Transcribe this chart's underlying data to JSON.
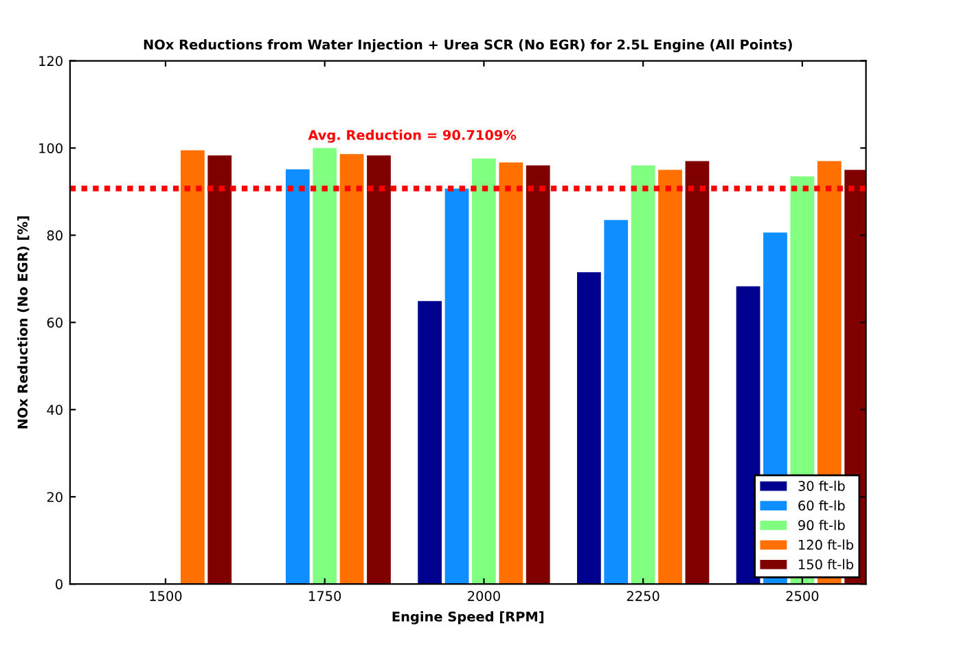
{
  "chart_data": {
    "type": "bar",
    "title": "NOx Reductions from Water Injection + Urea SCR (No EGR) for 2.5L Engine (All Points)",
    "xlabel": "Engine Speed [RPM]",
    "ylabel": "NOx Reduction (No EGR) [%]",
    "categories": [
      "1500",
      "1750",
      "2000",
      "2250",
      "2500"
    ],
    "series": [
      {
        "name": "30 ft-lb",
        "color": "#00008f",
        "values": [
          null,
          null,
          64.9,
          71.5,
          68.3
        ]
      },
      {
        "name": "60 ft-lb",
        "color": "#0f8fff",
        "values": [
          null,
          95.1,
          90.7,
          83.5,
          80.6
        ]
      },
      {
        "name": "90 ft-lb",
        "color": "#80ff80",
        "values": [
          null,
          100,
          97.6,
          96,
          93.5
        ]
      },
      {
        "name": "120 ft-lb",
        "color": "#ff7000",
        "values": [
          99.5,
          98.6,
          96.7,
          95,
          97
        ]
      },
      {
        "name": "150 ft-lb",
        "color": "#800000",
        "values": [
          98.3,
          98.3,
          96,
          97,
          95
        ]
      }
    ],
    "ylim": [
      0,
      120
    ],
    "yticks": [
      0,
      20,
      40,
      60,
      80,
      100,
      120
    ],
    "ref_lines": [
      {
        "axis": "y",
        "value": 90.7109,
        "label": "Avg. Reduction = 90.7109%",
        "color": "#ff0000",
        "line_style": "dotted"
      }
    ],
    "legend": "bottom right",
    "grid": false
  }
}
